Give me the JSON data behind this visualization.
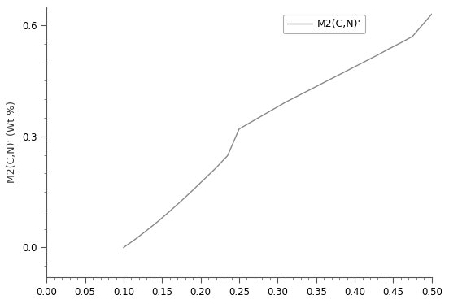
{
  "x_lim": [
    0.0,
    0.5
  ],
  "y_lim": [
    -0.08,
    0.65
  ],
  "x_ticks": [
    0.0,
    0.05,
    0.1,
    0.15,
    0.2,
    0.25,
    0.3,
    0.35,
    0.4,
    0.45,
    0.5
  ],
  "y_ticks": [
    0.0,
    0.3,
    0.6
  ],
  "ylabel": "M2(C,N)' (Wt %)",
  "legend_label": "M2(C,N)'",
  "line_color": "#888888",
  "background_color": "#ffffff",
  "curve_points_x": [
    0.1,
    0.115,
    0.13,
    0.145,
    0.16,
    0.175,
    0.19,
    0.205,
    0.22,
    0.235,
    0.25,
    0.265,
    0.28,
    0.295,
    0.31,
    0.325,
    0.34,
    0.355,
    0.37,
    0.385,
    0.4,
    0.415,
    0.43,
    0.445,
    0.46,
    0.475,
    0.5
  ],
  "curve_points_y": [
    0.0,
    0.022,
    0.046,
    0.071,
    0.098,
    0.126,
    0.155,
    0.185,
    0.215,
    0.248,
    0.32,
    0.338,
    0.356,
    0.374,
    0.392,
    0.408,
    0.424,
    0.44,
    0.456,
    0.472,
    0.488,
    0.504,
    0.52,
    0.537,
    0.553,
    0.57,
    0.63
  ],
  "spine_color": "#555555",
  "tick_label_fontsize": 8.5,
  "ylabel_fontsize": 9
}
